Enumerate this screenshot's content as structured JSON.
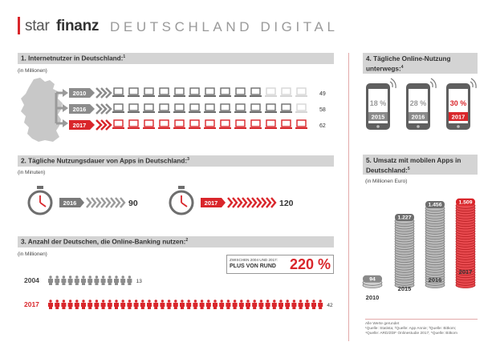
{
  "header": {
    "brand_light": "star",
    "brand_bold": "finanz",
    "title": "DEUTSCHLAND DIGITAL"
  },
  "colors": {
    "accent": "#d9262b",
    "gray": "#6e6e6e",
    "light_gray": "#d4d4d4"
  },
  "section1": {
    "title": "1. Internetnutzer in Deutschland:",
    "footnote_mark": "1",
    "unit": "(in Millionen)"
  },
  "section2": {
    "title": "2. Tägliche Nutzungsdauer von Apps in Deutschland:",
    "footnote_mark": "3",
    "unit": "(in Minuten)"
  },
  "section3": {
    "title": "3. Anzahl der Deutschen, die Online-Banking nutzen:",
    "footnote_mark": "2",
    "unit": "(in Millionen)",
    "callout_small": "ZWISCHEN 2004 UND 2017:",
    "callout_big": "PLUS VON RUND",
    "callout_pct": "220 %"
  },
  "section4": {
    "title_line1": "4. Tägliche Online-Nutzung",
    "title_line2": "unterwegs:",
    "footnote_mark": "4"
  },
  "section5": {
    "title_line1": "5. Umsatz mit mobilen Apps in",
    "title_line2": "Deutschland:",
    "footnote_mark": "5",
    "unit": "(in Millionen Euro)"
  },
  "footnotes": [
    "Alle Werte gerundet",
    "¹Quelle: Statista; ²Quelle: App Annie; ³Quelle: Bitkom;",
    "⁴Quelle: ARD/ZDF Onlinestudie 2017; ⁵Quelle: Bitkom"
  ],
  "chart_data": [
    {
      "type": "bar",
      "id": "internet_users",
      "title": "1. Internetnutzer in Deutschland:",
      "ylabel": "(in Millionen)",
      "categories": [
        "2010",
        "2016",
        "2017"
      ],
      "values": [
        49,
        58,
        62
      ],
      "value_labels": [
        "49",
        "58",
        "62"
      ],
      "icons_total": 13,
      "icons_filled": [
        10,
        12,
        13
      ]
    },
    {
      "type": "bar",
      "id": "app_minutes",
      "title": "2. Tägliche Nutzungsdauer von Apps in Deutschland:",
      "ylabel": "(in Minuten)",
      "categories": [
        "2016",
        "2017"
      ],
      "values": [
        90,
        120
      ],
      "value_labels": [
        "90",
        "120"
      ]
    },
    {
      "type": "bar",
      "id": "online_banking",
      "title": "3. Anzahl der Deutschen, die Online-Banking nutzen:",
      "ylabel": "(in Millionen)",
      "categories": [
        "2004",
        "2017"
      ],
      "values": [
        13,
        42
      ],
      "value_labels": [
        "13",
        "42"
      ]
    },
    {
      "type": "bar",
      "id": "mobile_online",
      "title": "4. Tägliche Online-Nutzung unterwegs:",
      "categories": [
        "2015",
        "2016",
        "2017"
      ],
      "values": [
        18,
        28,
        30
      ],
      "value_labels": [
        "18 %",
        "28 %",
        "30 %"
      ]
    },
    {
      "type": "bar",
      "id": "app_revenue",
      "title": "5. Umsatz mit mobilen Apps in Deutschland:",
      "ylabel": "(in Millionen Euro)",
      "categories": [
        "2010",
        "2015",
        "2016",
        "2017"
      ],
      "values": [
        94,
        1227,
        1456,
        1509
      ],
      "value_labels": [
        "94",
        "1.227",
        "1.456",
        "1.509"
      ],
      "ylim": [
        0,
        1600
      ]
    }
  ]
}
